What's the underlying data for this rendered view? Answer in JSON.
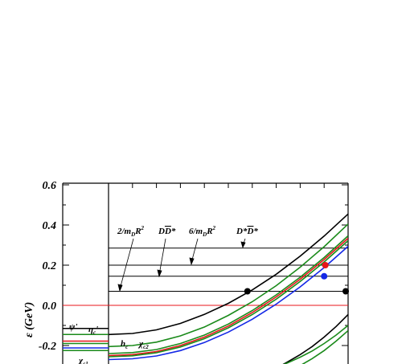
{
  "chart_data": {
    "type": "line",
    "ylabel": "ε  (GeV)",
    "ylim": [
      -0.3,
      0.6
    ],
    "yticks": [
      {
        "value": 0.6,
        "label": "0.6"
      },
      {
        "value": 0.4,
        "label": "0.4"
      },
      {
        "value": 0.2,
        "label": "0.2"
      },
      {
        "value": 0.0,
        "label": "0.0"
      },
      {
        "value": -0.2,
        "label": "-0.2"
      }
    ],
    "colors": {
      "black": "#000000",
      "red": "#e8141b",
      "green": "#1a8a1a",
      "blue": "#1428e6"
    },
    "threshold_lines": [
      {
        "label": "2/m",
        "sub": "D",
        "label2": "R",
        "sup": "2",
        "y": 0.07
      },
      {
        "label": "D",
        "overline": "D",
        "label2": "*",
        "y": 0.145
      },
      {
        "label": "6/m",
        "sub": "D",
        "label2": "R",
        "sup": "2",
        "y": 0.2
      },
      {
        "label": "D*",
        "overline": "D",
        "label2": "*",
        "y": 0.285
      }
    ],
    "zero_line": {
      "y": 0.0,
      "color": "red"
    },
    "left_levels": [
      {
        "name": "ψ'",
        "y": -0.115,
        "color": "black"
      },
      {
        "name": "η",
        "sub": "c",
        "suffix": "'",
        "y": -0.145,
        "color": "green"
      },
      {
        "name": "h",
        "sub": "c",
        "y": -0.178,
        "color": "red"
      },
      {
        "name": "χ",
        "sub": "c2",
        "y": -0.19,
        "color": "green"
      },
      {
        "name": "χ",
        "sub": "c1",
        "y": -0.212,
        "color": "blue"
      },
      {
        "name": "",
        "y": -0.225,
        "color": "green"
      }
    ],
    "series": [
      {
        "color": "black",
        "x": [
          0.0,
          0.1,
          0.2,
          0.3,
          0.4,
          0.5,
          0.6,
          0.7,
          0.8,
          0.9,
          1.0
        ],
        "y": [
          -0.145,
          -0.14,
          -0.122,
          -0.09,
          -0.045,
          0.01,
          0.077,
          0.155,
          0.245,
          0.345,
          0.455
        ]
      },
      {
        "color": "green",
        "x": [
          0.0,
          0.1,
          0.2,
          0.3,
          0.4,
          0.5,
          0.6,
          0.7,
          0.8,
          0.9,
          1.0
        ],
        "y": [
          -0.205,
          -0.2,
          -0.183,
          -0.152,
          -0.108,
          -0.05,
          0.018,
          0.098,
          0.19,
          0.292,
          0.405
        ]
      },
      {
        "color": "green",
        "x": [
          0.0,
          0.1,
          0.2,
          0.3,
          0.4,
          0.5,
          0.6,
          0.7,
          0.8,
          0.9,
          1.0
        ],
        "y": [
          -0.24,
          -0.235,
          -0.22,
          -0.19,
          -0.148,
          -0.093,
          -0.026,
          0.052,
          0.14,
          0.238,
          0.346
        ]
      },
      {
        "color": "red",
        "x": [
          0.0,
          0.1,
          0.2,
          0.3,
          0.4,
          0.5,
          0.6,
          0.7,
          0.8,
          0.9,
          1.0
        ],
        "y": [
          -0.25,
          -0.245,
          -0.23,
          -0.2,
          -0.158,
          -0.103,
          -0.036,
          0.042,
          0.13,
          0.228,
          0.334
        ]
      },
      {
        "color": "green",
        "x": [
          0.0,
          0.1,
          0.2,
          0.3,
          0.4,
          0.5,
          0.6,
          0.7,
          0.8,
          0.9,
          1.0
        ],
        "y": [
          -0.256,
          -0.251,
          -0.236,
          -0.207,
          -0.166,
          -0.112,
          -0.046,
          0.031,
          0.119,
          0.216,
          0.322
        ]
      },
      {
        "color": "blue",
        "x": [
          0.0,
          0.1,
          0.2,
          0.3,
          0.4,
          0.5,
          0.6,
          0.7,
          0.8,
          0.9,
          1.0
        ],
        "y": [
          -0.27,
          -0.266,
          -0.252,
          -0.225,
          -0.185,
          -0.133,
          -0.069,
          0.006,
          0.092,
          0.188,
          0.294
        ]
      },
      {
        "color": "black",
        "x": [
          0.72,
          0.75,
          0.8,
          0.85,
          0.9,
          0.95,
          1.0
        ],
        "y": [
          -0.3,
          -0.28,
          -0.245,
          -0.205,
          -0.158,
          -0.105,
          -0.046
        ]
      },
      {
        "color": "green",
        "x": [
          0.8,
          0.85,
          0.9,
          0.95,
          1.0
        ],
        "y": [
          -0.3,
          -0.265,
          -0.225,
          -0.178,
          -0.126
        ]
      },
      {
        "color": "green",
        "x": [
          0.72,
          0.75,
          0.8,
          0.85,
          0.9,
          0.95,
          1.0
        ],
        "y": [
          -0.3,
          -0.285,
          -0.258,
          -0.227,
          -0.19,
          -0.148,
          -0.1
        ]
      }
    ],
    "markers": [
      {
        "color": "black",
        "x": 0.58,
        "y": 0.07
      },
      {
        "color": "red",
        "x": 0.905,
        "y": 0.2
      },
      {
        "color": "blue",
        "x": 0.9,
        "y": 0.145
      },
      {
        "color": "black",
        "x": 0.99,
        "y": 0.07
      }
    ]
  }
}
